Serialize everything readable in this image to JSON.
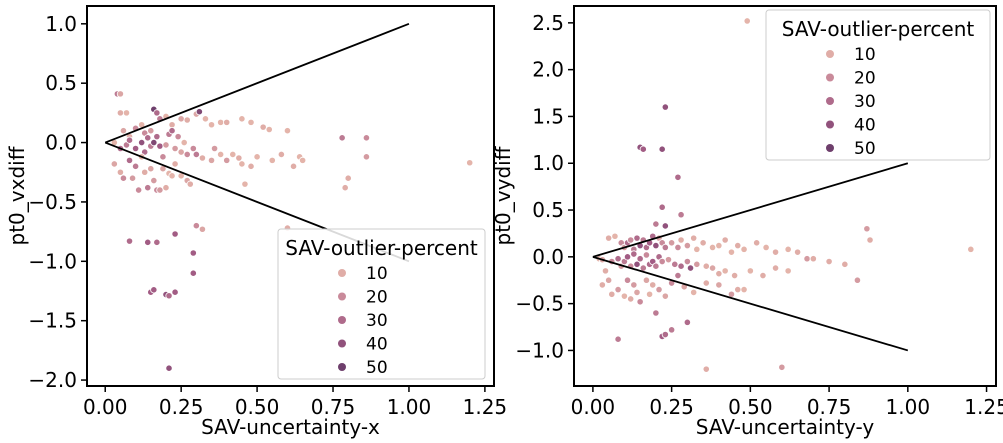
{
  "hue_scale": {
    "colors": [
      "#ebbeae",
      "#c98a9a",
      "#a25c84",
      "#6e3f6c",
      "#2d1e3e"
    ],
    "stops": [
      5,
      20,
      35,
      50,
      60
    ]
  },
  "chart_data": [
    {
      "type": "scatter",
      "xlabel": "SAV-uncertainty-x",
      "ylabel": "pt0_vxdiff",
      "xlim": [
        -0.06,
        1.28
      ],
      "ylim": [
        -2.05,
        1.15
      ],
      "xticks": [
        0.0,
        0.25,
        0.5,
        0.75,
        1.0,
        1.25
      ],
      "xtick_labels": [
        "0.00",
        "0.25",
        "0.50",
        "0.75",
        "1.00",
        "1.25"
      ],
      "yticks": [
        -2.0,
        -1.5,
        -1.0,
        -0.5,
        0.0,
        0.5,
        1.0
      ],
      "ytick_labels": [
        "−2.0",
        "−1.5",
        "−1.0",
        "−0.5",
        "0.0",
        "0.5",
        "1.0"
      ],
      "reference_lines": [
        [
          [
            0,
            0
          ],
          [
            1.0,
            1.0
          ]
        ],
        [
          [
            0,
            0
          ],
          [
            1.0,
            -1.0
          ]
        ]
      ],
      "legend": {
        "title": "SAV-outlier-percent",
        "placement": "lower-right",
        "entries": [
          {
            "label": "10",
            "value": 10
          },
          {
            "label": "20",
            "value": 20
          },
          {
            "label": "30",
            "value": 30
          },
          {
            "label": "40",
            "value": 40
          },
          {
            "label": "50",
            "value": 50
          }
        ]
      },
      "points": [
        [
          0.04,
          0.41,
          25
        ],
        [
          0.05,
          0.41,
          12
        ],
        [
          0.05,
          0.25,
          10
        ],
        [
          0.07,
          0.25,
          8
        ],
        [
          0.06,
          0.1,
          12
        ],
        [
          0.08,
          0.05,
          10
        ],
        [
          0.1,
          0.12,
          20
        ],
        [
          0.12,
          0.15,
          8
        ],
        [
          0.13,
          0.08,
          20
        ],
        [
          0.15,
          0.1,
          15
        ],
        [
          0.16,
          0.28,
          50
        ],
        [
          0.17,
          0.25,
          30
        ],
        [
          0.18,
          0.2,
          25
        ],
        [
          0.2,
          0.22,
          8
        ],
        [
          0.22,
          0.15,
          10
        ],
        [
          0.25,
          0.2,
          12
        ],
        [
          0.27,
          0.19,
          10
        ],
        [
          0.3,
          0.24,
          12
        ],
        [
          0.31,
          0.26,
          45
        ],
        [
          0.33,
          0.2,
          8
        ],
        [
          0.35,
          0.15,
          8
        ],
        [
          0.38,
          0.17,
          8
        ],
        [
          0.4,
          0.17,
          10
        ],
        [
          0.45,
          0.2,
          8
        ],
        [
          0.48,
          0.17,
          8
        ],
        [
          0.52,
          0.13,
          10
        ],
        [
          0.54,
          0.11,
          8
        ],
        [
          0.6,
          0.1,
          8
        ],
        [
          0.78,
          0.04,
          25
        ],
        [
          0.86,
          0.04,
          20
        ],
        [
          0.03,
          0.0,
          8
        ],
        [
          0.05,
          -0.05,
          30
        ],
        [
          0.07,
          -0.02,
          25
        ],
        [
          0.08,
          0.02,
          30
        ],
        [
          0.1,
          -0.05,
          35
        ],
        [
          0.12,
          0.0,
          40
        ],
        [
          0.13,
          -0.08,
          30
        ],
        [
          0.14,
          0.04,
          30
        ],
        [
          0.15,
          -0.03,
          25
        ],
        [
          0.16,
          0.0,
          45
        ],
        [
          0.17,
          0.05,
          30
        ],
        [
          0.18,
          -0.03,
          35
        ],
        [
          0.19,
          -0.12,
          20
        ],
        [
          0.2,
          -0.02,
          15
        ],
        [
          0.21,
          0.07,
          25
        ],
        [
          0.22,
          0.1,
          30
        ],
        [
          0.23,
          -0.05,
          15
        ],
        [
          0.24,
          0.05,
          20
        ],
        [
          0.25,
          -0.08,
          12
        ],
        [
          0.26,
          0.0,
          8
        ],
        [
          0.27,
          -0.1,
          20
        ],
        [
          0.29,
          -0.05,
          20
        ],
        [
          0.3,
          -0.1,
          25
        ],
        [
          0.32,
          -0.13,
          10
        ],
        [
          0.35,
          -0.15,
          12
        ],
        [
          0.36,
          -0.05,
          15
        ],
        [
          0.38,
          -0.1,
          8
        ],
        [
          0.4,
          -0.15,
          15
        ],
        [
          0.42,
          -0.1,
          8
        ],
        [
          0.44,
          -0.13,
          10
        ],
        [
          0.45,
          -0.18,
          8
        ],
        [
          0.48,
          -0.2,
          10
        ],
        [
          0.5,
          -0.12,
          8
        ],
        [
          0.55,
          -0.15,
          8
        ],
        [
          0.58,
          -0.1,
          10
        ],
        [
          0.62,
          -0.2,
          10
        ],
        [
          0.64,
          -0.12,
          8
        ],
        [
          0.65,
          -0.15,
          8
        ],
        [
          0.8,
          -0.3,
          10
        ],
        [
          0.86,
          -0.12,
          15
        ],
        [
          1.2,
          -0.17,
          8
        ],
        [
          0.46,
          -0.35,
          8
        ],
        [
          0.79,
          -0.38,
          10
        ],
        [
          0.03,
          -0.18,
          12
        ],
        [
          0.05,
          -0.25,
          10
        ],
        [
          0.06,
          -0.3,
          20
        ],
        [
          0.08,
          -0.15,
          30
        ],
        [
          0.09,
          -0.3,
          15
        ],
        [
          0.1,
          -0.2,
          25
        ],
        [
          0.11,
          -0.4,
          20
        ],
        [
          0.12,
          -0.12,
          8
        ],
        [
          0.13,
          -0.25,
          10
        ],
        [
          0.14,
          -0.38,
          25
        ],
        [
          0.15,
          -0.22,
          12
        ],
        [
          0.16,
          -0.32,
          15
        ],
        [
          0.17,
          -0.4,
          20
        ],
        [
          0.18,
          -0.4,
          15
        ],
        [
          0.19,
          -0.22,
          12
        ],
        [
          0.2,
          -0.38,
          10
        ],
        [
          0.21,
          -0.26,
          8
        ],
        [
          0.22,
          -0.28,
          8
        ],
        [
          0.23,
          -0.18,
          10
        ],
        [
          0.25,
          -0.28,
          8
        ],
        [
          0.27,
          -0.32,
          12
        ],
        [
          0.28,
          -0.35,
          10
        ],
        [
          0.3,
          -0.7,
          20
        ],
        [
          0.32,
          -0.73,
          12
        ],
        [
          0.6,
          -0.72,
          10
        ],
        [
          0.08,
          -0.83,
          30
        ],
        [
          0.14,
          -0.84,
          35
        ],
        [
          0.17,
          -0.84,
          30
        ],
        [
          0.23,
          -0.77,
          35
        ],
        [
          0.29,
          -0.93,
          35
        ],
        [
          0.29,
          -1.1,
          35
        ],
        [
          0.15,
          -1.26,
          35
        ],
        [
          0.16,
          -1.24,
          35
        ],
        [
          0.2,
          -1.28,
          40
        ],
        [
          0.21,
          -1.29,
          30
        ],
        [
          0.23,
          -1.26,
          35
        ],
        [
          0.21,
          -1.9,
          40
        ]
      ]
    },
    {
      "type": "scatter",
      "xlabel": "SAV-uncertainty-y",
      "ylabel": "pt0_vydiff",
      "xlim": [
        -0.06,
        1.28
      ],
      "ylim": [
        -1.38,
        2.68
      ],
      "xticks": [
        0.0,
        0.25,
        0.5,
        0.75,
        1.0,
        1.25
      ],
      "xtick_labels": [
        "0.00",
        "0.25",
        "0.50",
        "0.75",
        "1.00",
        "1.25"
      ],
      "yticks": [
        -1.0,
        -0.5,
        0.0,
        0.5,
        1.0,
        1.5,
        2.0,
        2.5
      ],
      "ytick_labels": [
        "−1.0",
        "−0.5",
        "0.0",
        "0.5",
        "1.0",
        "1.5",
        "2.0",
        "2.5"
      ],
      "reference_lines": [
        [
          [
            0,
            0
          ],
          [
            1.0,
            1.0
          ]
        ],
        [
          [
            0,
            0
          ],
          [
            1.0,
            -1.0
          ]
        ]
      ],
      "legend": {
        "title": "SAV-outlier-percent",
        "placement": "upper-right",
        "entries": [
          {
            "label": "10",
            "value": 10
          },
          {
            "label": "20",
            "value": 20
          },
          {
            "label": "30",
            "value": 30
          },
          {
            "label": "40",
            "value": 40
          },
          {
            "label": "50",
            "value": 50
          }
        ]
      },
      "points": [
        [
          0.49,
          2.52,
          8
        ],
        [
          0.23,
          1.6,
          40
        ],
        [
          0.15,
          1.17,
          40
        ],
        [
          0.16,
          1.15,
          35
        ],
        [
          0.22,
          1.15,
          40
        ],
        [
          0.27,
          0.85,
          30
        ],
        [
          0.22,
          0.53,
          30
        ],
        [
          0.28,
          0.45,
          25
        ],
        [
          0.2,
          0.35,
          25
        ],
        [
          0.23,
          0.33,
          40
        ],
        [
          0.87,
          0.3,
          15
        ],
        [
          0.88,
          0.18,
          10
        ],
        [
          1.2,
          0.08,
          8
        ],
        [
          0.05,
          0.2,
          10
        ],
        [
          0.07,
          0.22,
          8
        ],
        [
          0.09,
          0.15,
          20
        ],
        [
          0.1,
          0.1,
          15
        ],
        [
          0.11,
          0.15,
          30
        ],
        [
          0.12,
          0.18,
          20
        ],
        [
          0.13,
          0.08,
          25
        ],
        [
          0.14,
          0.2,
          30
        ],
        [
          0.15,
          0.12,
          40
        ],
        [
          0.16,
          0.18,
          25
        ],
        [
          0.17,
          0.1,
          30
        ],
        [
          0.18,
          0.15,
          35
        ],
        [
          0.19,
          0.22,
          30
        ],
        [
          0.2,
          0.12,
          40
        ],
        [
          0.21,
          0.2,
          12
        ],
        [
          0.22,
          0.15,
          20
        ],
        [
          0.23,
          0.1,
          25
        ],
        [
          0.25,
          0.15,
          15
        ],
        [
          0.27,
          0.1,
          20
        ],
        [
          0.28,
          0.18,
          10
        ],
        [
          0.3,
          0.12,
          15
        ],
        [
          0.32,
          0.2,
          10
        ],
        [
          0.33,
          0.08,
          8
        ],
        [
          0.35,
          0.15,
          10
        ],
        [
          0.38,
          0.1,
          8
        ],
        [
          0.4,
          0.12,
          8
        ],
        [
          0.42,
          0.18,
          10
        ],
        [
          0.44,
          0.05,
          8
        ],
        [
          0.46,
          0.12,
          10
        ],
        [
          0.48,
          0.08,
          8
        ],
        [
          0.52,
          0.15,
          10
        ],
        [
          0.55,
          0.1,
          8
        ],
        [
          0.58,
          0.05,
          10
        ],
        [
          0.62,
          0.08,
          8
        ],
        [
          0.65,
          0.05,
          10
        ],
        [
          0.68,
          -0.02,
          15
        ],
        [
          0.7,
          -0.02,
          10
        ],
        [
          0.75,
          -0.05,
          10
        ],
        [
          0.8,
          -0.08,
          10
        ],
        [
          0.84,
          -0.25,
          15
        ],
        [
          0.02,
          -0.02,
          8
        ],
        [
          0.03,
          -0.03,
          12
        ],
        [
          0.04,
          -0.15,
          10
        ],
        [
          0.06,
          -0.05,
          20
        ],
        [
          0.08,
          -0.02,
          30
        ],
        [
          0.09,
          -0.1,
          15
        ],
        [
          0.1,
          -0.05,
          25
        ],
        [
          0.11,
          0.0,
          35
        ],
        [
          0.12,
          -0.1,
          20
        ],
        [
          0.13,
          0.03,
          30
        ],
        [
          0.14,
          -0.08,
          40
        ],
        [
          0.15,
          -0.02,
          30
        ],
        [
          0.16,
          -0.12,
          25
        ],
        [
          0.17,
          0.02,
          20
        ],
        [
          0.18,
          -0.08,
          30
        ],
        [
          0.19,
          -0.05,
          35
        ],
        [
          0.2,
          -0.1,
          25
        ],
        [
          0.21,
          0.0,
          30
        ],
        [
          0.22,
          -0.05,
          20
        ],
        [
          0.24,
          -0.03,
          15
        ],
        [
          0.26,
          -0.08,
          25
        ],
        [
          0.28,
          -0.1,
          30
        ],
        [
          0.3,
          -0.05,
          20
        ],
        [
          0.31,
          -0.12,
          40
        ],
        [
          0.33,
          -0.08,
          15
        ],
        [
          0.36,
          -0.1,
          10
        ],
        [
          0.38,
          -0.12,
          12
        ],
        [
          0.4,
          -0.18,
          10
        ],
        [
          0.42,
          -0.15,
          8
        ],
        [
          0.45,
          -0.2,
          10
        ],
        [
          0.5,
          -0.15,
          8
        ],
        [
          0.54,
          -0.2,
          10
        ],
        [
          0.58,
          -0.12,
          10
        ],
        [
          0.62,
          -0.15,
          8
        ],
        [
          0.03,
          -0.3,
          10
        ],
        [
          0.05,
          -0.25,
          12
        ],
        [
          0.06,
          -0.4,
          10
        ],
        [
          0.08,
          -0.35,
          15
        ],
        [
          0.1,
          -0.42,
          8
        ],
        [
          0.11,
          -0.25,
          20
        ],
        [
          0.12,
          -0.45,
          10
        ],
        [
          0.13,
          -0.3,
          15
        ],
        [
          0.14,
          -0.38,
          12
        ],
        [
          0.15,
          -0.48,
          20
        ],
        [
          0.17,
          -0.25,
          12
        ],
        [
          0.18,
          -0.4,
          8
        ],
        [
          0.19,
          -0.3,
          10
        ],
        [
          0.2,
          -0.6,
          25
        ],
        [
          0.21,
          -0.35,
          15
        ],
        [
          0.23,
          -0.42,
          12
        ],
        [
          0.25,
          -0.28,
          20
        ],
        [
          0.27,
          -0.2,
          25
        ],
        [
          0.29,
          -0.32,
          12
        ],
        [
          0.32,
          -0.38,
          8
        ],
        [
          0.36,
          -0.28,
          10
        ],
        [
          0.4,
          -0.3,
          12
        ],
        [
          0.44,
          -0.4,
          15
        ],
        [
          0.46,
          -0.35,
          10
        ],
        [
          0.48,
          -0.35,
          8
        ],
        [
          0.25,
          -0.78,
          25
        ],
        [
          0.3,
          -0.7,
          30
        ],
        [
          0.08,
          -0.88,
          25
        ],
        [
          0.22,
          -0.85,
          35
        ],
        [
          0.23,
          -0.83,
          30
        ],
        [
          0.36,
          -1.2,
          10
        ],
        [
          0.6,
          -1.18,
          15
        ]
      ]
    }
  ]
}
